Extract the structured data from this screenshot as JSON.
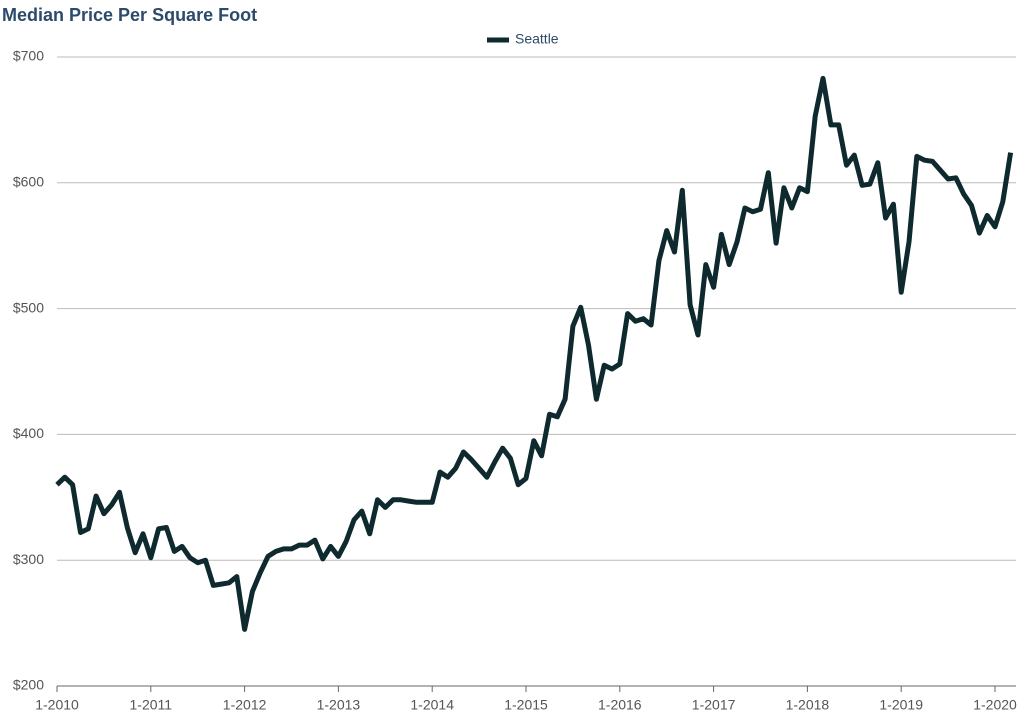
{
  "chart_data": {
    "type": "line",
    "title": "Median Price Per Square Foot",
    "categories": [
      "1-2010",
      null,
      null,
      null,
      null,
      null,
      null,
      null,
      null,
      null,
      null,
      null,
      "1-2011",
      null,
      null,
      null,
      null,
      null,
      null,
      null,
      null,
      null,
      null,
      null,
      "1-2012",
      null,
      null,
      null,
      null,
      null,
      null,
      null,
      null,
      null,
      null,
      null,
      "1-2013",
      null,
      null,
      null,
      null,
      null,
      null,
      null,
      null,
      null,
      null,
      null,
      "1-2014",
      null,
      null,
      null,
      null,
      null,
      null,
      null,
      null,
      null,
      null,
      null,
      "1-2015",
      null,
      null,
      null,
      null,
      null,
      null,
      null,
      null,
      null,
      null,
      null,
      "1-2016",
      null,
      null,
      null,
      null,
      null,
      null,
      null,
      null,
      null,
      null,
      null,
      "1-2017",
      null,
      null,
      null,
      null,
      null,
      null,
      null,
      null,
      null,
      null,
      null,
      "1-2018",
      null,
      null,
      null,
      null,
      null,
      null,
      null,
      null,
      null,
      null,
      null,
      "1-2019",
      null,
      null,
      null,
      null,
      null,
      null,
      null,
      null,
      null,
      null,
      null,
      "1-2020",
      null,
      null
    ],
    "series": [
      {
        "name": "Seattle",
        "color": "#0f2a2e",
        "values": [
          360,
          366,
          360,
          322,
          325,
          351,
          337,
          344,
          354,
          326,
          306,
          321,
          302,
          325,
          326,
          307,
          311,
          302,
          298,
          300,
          280,
          281,
          282,
          287,
          245,
          275,
          290,
          303,
          307,
          309,
          309,
          312,
          312,
          316,
          301,
          311,
          303,
          315,
          332,
          339,
          321,
          348,
          342,
          348,
          348,
          347,
          346,
          346,
          346,
          370,
          366,
          373,
          386,
          380,
          373,
          366,
          378,
          389,
          381,
          360,
          365,
          395,
          383,
          416,
          414,
          428,
          486,
          501,
          471,
          428,
          455,
          452,
          456,
          496,
          490,
          492,
          487,
          538,
          562,
          545,
          594,
          503,
          479,
          535,
          517,
          559,
          535,
          553,
          580,
          577,
          579,
          608,
          552,
          596,
          580,
          596,
          593,
          653,
          683,
          646,
          646,
          614,
          622,
          598,
          599,
          616,
          572,
          583,
          513,
          553,
          621,
          618,
          617,
          610,
          603,
          604,
          591,
          582,
          560,
          574,
          565,
          585,
          624
        ]
      }
    ],
    "ylim": [
      200,
      700
    ],
    "yticks": [
      {
        "value": 200,
        "label": "$200"
      },
      {
        "value": 300,
        "label": "$300"
      },
      {
        "value": 400,
        "label": "$400"
      },
      {
        "value": 500,
        "label": "$500"
      },
      {
        "value": 600,
        "label": "$600"
      },
      {
        "value": 700,
        "label": "$700"
      }
    ],
    "grid": true,
    "legend": "top"
  }
}
